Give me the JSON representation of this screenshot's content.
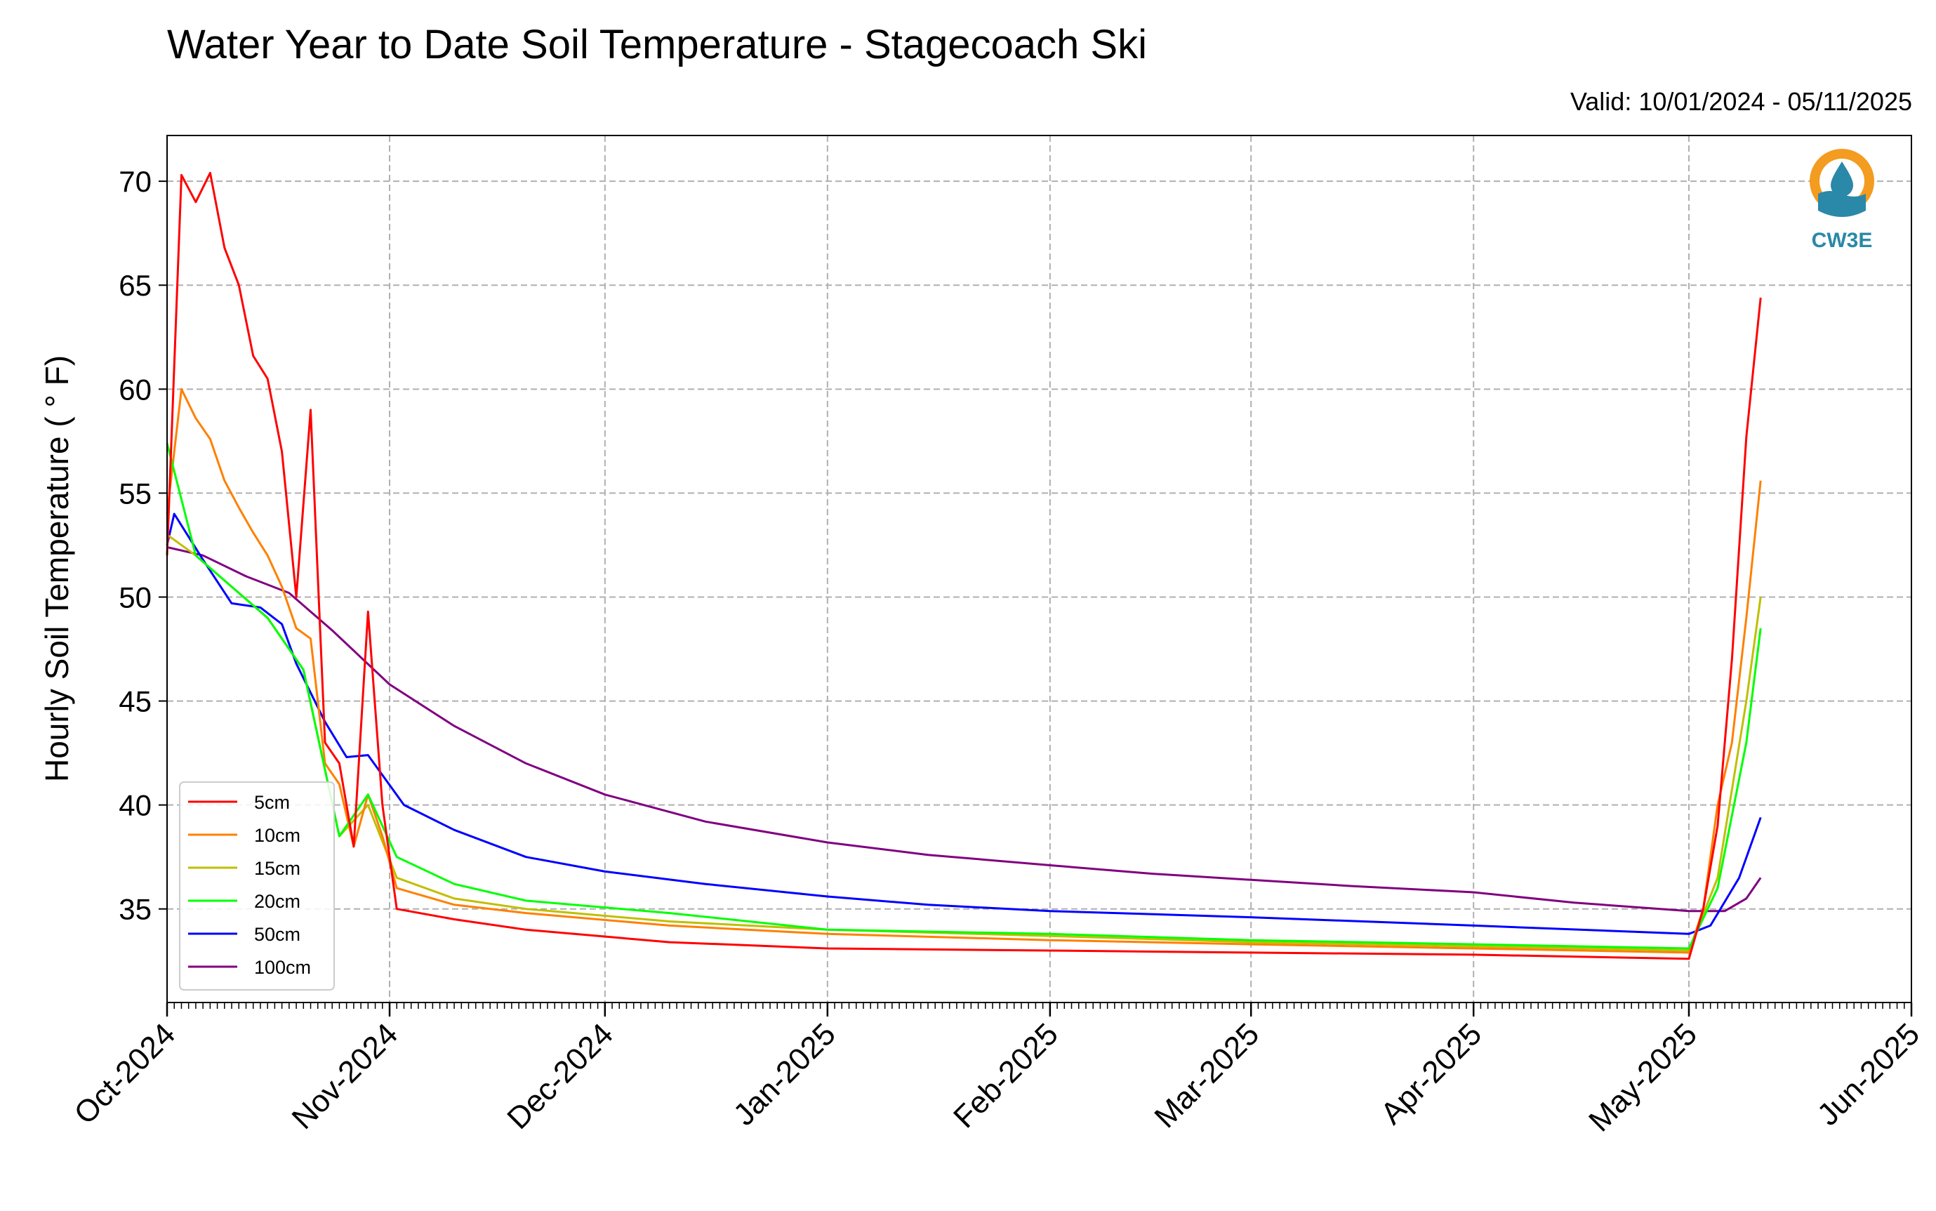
{
  "colors": {
    "5cm": "#ff0000",
    "10cm": "#ff8000",
    "15cm": "#bfbf00",
    "20cm": "#00ff00",
    "50cm": "#0000ff",
    "100cm": "#800080",
    "logo_orange": "#f39c1f",
    "logo_teal": "#2a88a8"
  },
  "logo": {
    "icon": "cw3e-water-drop-logo",
    "text": "CW3E"
  },
  "chart_data": {
    "type": "line",
    "title": "Water Year to Date Soil Temperature - Stagecoach Ski",
    "subtitle": "Valid: 10/01/2024 - 05/11/2025",
    "xlabel": "",
    "ylabel": "Hourly Soil Temperature ( ° F)",
    "xlim": [
      "2024-10-01",
      "2025-06-01"
    ],
    "ylim": [
      30.5,
      72.2
    ],
    "x_ticks": [
      "Oct-2024",
      "Nov-2024",
      "Dec-2024",
      "Jan-2025",
      "Feb-2025",
      "Mar-2025",
      "Apr-2025",
      "May-2025",
      "Jun-2025"
    ],
    "y_ticks": [
      35,
      40,
      45,
      50,
      55,
      60,
      65,
      70
    ],
    "grid": true,
    "legend_position": "lower-left",
    "series": [
      {
        "name": "5cm",
        "x": [
          "2024-10-01",
          "2024-10-03",
          "2024-10-05",
          "2024-10-07",
          "2024-10-09",
          "2024-10-11",
          "2024-10-13",
          "2024-10-15",
          "2024-10-17",
          "2024-10-19",
          "2024-10-21",
          "2024-10-23",
          "2024-10-25",
          "2024-10-27",
          "2024-10-29",
          "2024-10-31",
          "2024-11-02",
          "2024-11-10",
          "2024-11-20",
          "2024-12-10",
          "2025-01-01",
          "2025-02-01",
          "2025-03-01",
          "2025-04-01",
          "2025-05-01",
          "2025-05-03",
          "2025-05-05",
          "2025-05-07",
          "2025-05-09",
          "2025-05-11"
        ],
        "y": [
          52.0,
          70.3,
          69.0,
          70.4,
          66.8,
          65.0,
          61.6,
          60.5,
          57.0,
          50.0,
          59.0,
          43.0,
          42.0,
          38.0,
          49.3,
          40.0,
          35.0,
          34.5,
          34.0,
          33.4,
          33.1,
          33.0,
          32.9,
          32.8,
          32.6,
          35.0,
          39.0,
          47.0,
          57.7,
          64.4
        ]
      },
      {
        "name": "10cm",
        "x": [
          "2024-10-01",
          "2024-10-03",
          "2024-10-05",
          "2024-10-07",
          "2024-10-09",
          "2024-10-11",
          "2024-10-13",
          "2024-10-15",
          "2024-10-17",
          "2024-10-19",
          "2024-10-21",
          "2024-10-23",
          "2024-10-25",
          "2024-10-27",
          "2024-10-29",
          "2024-10-31",
          "2024-11-02",
          "2024-11-10",
          "2024-11-20",
          "2024-12-10",
          "2025-01-01",
          "2025-02-01",
          "2025-03-01",
          "2025-04-01",
          "2025-05-01",
          "2025-05-03",
          "2025-05-05",
          "2025-05-07",
          "2025-05-09",
          "2025-05-11"
        ],
        "y": [
          54.0,
          60.0,
          58.6,
          57.6,
          55.6,
          54.3,
          53.1,
          52.0,
          50.5,
          48.5,
          48.0,
          42.0,
          41.0,
          38.0,
          40.5,
          38.5,
          36.0,
          35.2,
          34.8,
          34.2,
          33.8,
          33.5,
          33.3,
          33.1,
          32.9,
          35.0,
          40.0,
          43.0,
          49.0,
          55.6
        ]
      },
      {
        "name": "15cm",
        "x": [
          "2024-10-01",
          "2024-10-05",
          "2024-10-10",
          "2024-10-15",
          "2024-10-20",
          "2024-10-25",
          "2024-10-29",
          "2024-11-02",
          "2024-11-10",
          "2024-11-20",
          "2024-12-10",
          "2025-01-01",
          "2025-02-01",
          "2025-03-01",
          "2025-04-01",
          "2025-05-01",
          "2025-05-05",
          "2025-05-09",
          "2025-05-11"
        ],
        "y": [
          53.0,
          52.0,
          50.5,
          49.0,
          46.5,
          38.5,
          40.0,
          36.5,
          35.5,
          35.0,
          34.4,
          34.0,
          33.7,
          33.4,
          33.2,
          33.0,
          36.5,
          45.0,
          50.0
        ]
      },
      {
        "name": "20cm",
        "x": [
          "2024-10-01",
          "2024-10-05",
          "2024-10-10",
          "2024-10-15",
          "2024-10-20",
          "2024-10-25",
          "2024-10-29",
          "2024-11-02",
          "2024-11-10",
          "2024-11-20",
          "2024-12-10",
          "2025-01-01",
          "2025-02-01",
          "2025-03-01",
          "2025-04-01",
          "2025-05-01",
          "2025-05-05",
          "2025-05-09",
          "2025-05-11"
        ],
        "y": [
          57.4,
          52.0,
          50.5,
          49.0,
          46.5,
          38.5,
          40.5,
          37.5,
          36.2,
          35.4,
          34.8,
          34.0,
          33.8,
          33.5,
          33.3,
          33.1,
          36.0,
          43.0,
          48.5
        ]
      },
      {
        "name": "50cm",
        "x": [
          "2024-10-01",
          "2024-10-02",
          "2024-10-06",
          "2024-10-10",
          "2024-10-14",
          "2024-10-17",
          "2024-10-19",
          "2024-10-23",
          "2024-10-26",
          "2024-10-29",
          "2024-11-03",
          "2024-11-10",
          "2024-11-20",
          "2024-12-01",
          "2024-12-15",
          "2025-01-01",
          "2025-01-15",
          "2025-02-01",
          "2025-03-01",
          "2025-04-01",
          "2025-05-01",
          "2025-05-04",
          "2025-05-08",
          "2025-05-11"
        ],
        "y": [
          52.5,
          54.0,
          51.8,
          49.7,
          49.5,
          48.7,
          46.8,
          44.0,
          42.3,
          42.4,
          40.0,
          38.8,
          37.5,
          36.8,
          36.2,
          35.6,
          35.2,
          34.9,
          34.6,
          34.2,
          33.8,
          34.2,
          36.5,
          39.4
        ]
      },
      {
        "name": "100cm",
        "x": [
          "2024-10-01",
          "2024-10-06",
          "2024-10-12",
          "2024-10-18",
          "2024-10-24",
          "2024-11-01",
          "2024-11-10",
          "2024-11-20",
          "2024-12-01",
          "2024-12-15",
          "2025-01-01",
          "2025-01-15",
          "2025-02-01",
          "2025-02-15",
          "2025-03-01",
          "2025-03-15",
          "2025-04-01",
          "2025-04-15",
          "2025-05-01",
          "2025-05-06",
          "2025-05-09",
          "2025-05-11"
        ],
        "y": [
          52.4,
          52.0,
          51.0,
          50.2,
          48.4,
          45.8,
          43.8,
          42.0,
          40.5,
          39.2,
          38.2,
          37.6,
          37.1,
          36.7,
          36.4,
          36.1,
          35.8,
          35.3,
          34.9,
          34.9,
          35.5,
          36.5
        ]
      }
    ]
  }
}
